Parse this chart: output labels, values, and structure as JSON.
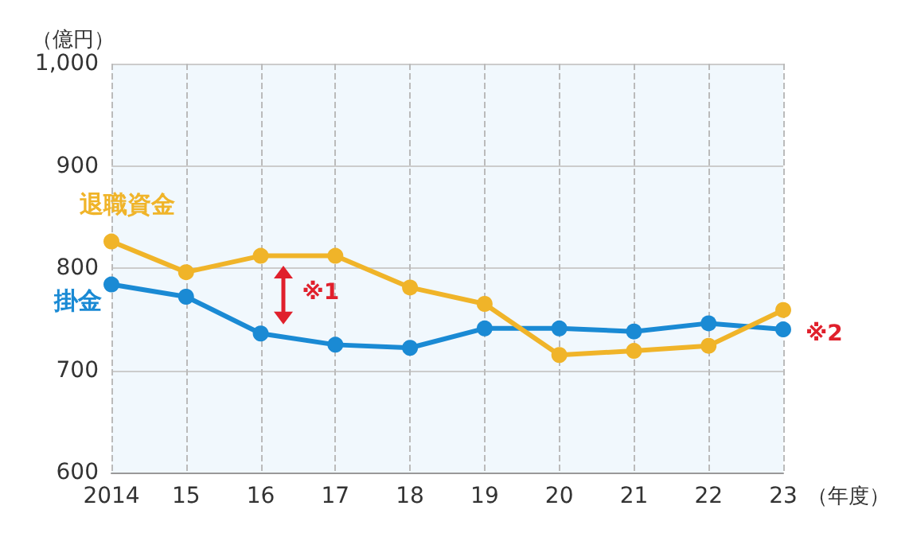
{
  "chart_data": {
    "type": "line",
    "ylabel": "（億円）",
    "xlabel": "（年度）",
    "categories": [
      "2014",
      "15",
      "16",
      "17",
      "18",
      "19",
      "20",
      "21",
      "22",
      "23"
    ],
    "series": [
      {
        "name": "退職資金",
        "color": "#f0b429",
        "values": [
          826,
          796,
          812,
          812,
          781,
          765,
          715,
          719,
          724,
          759
        ]
      },
      {
        "name": "掛金",
        "color": "#1a8ad4",
        "values": [
          784,
          772,
          736,
          725,
          722,
          741,
          741,
          738,
          746,
          740
        ]
      }
    ],
    "ylim": [
      600,
      1000
    ],
    "yticks": [
      600,
      700,
      800,
      900,
      {
        "value": 1000,
        "label": "1,000"
      }
    ],
    "grid": true,
    "legend": false,
    "marker": "circle",
    "line_style": "solid",
    "annotations": [
      "※1",
      "※2"
    ]
  }
}
